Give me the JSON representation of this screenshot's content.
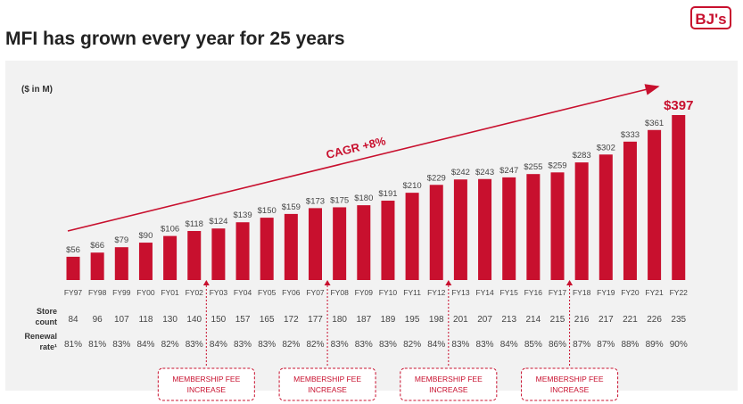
{
  "page": {
    "title": "MFI has grown every year for 25 years",
    "brand": "BJ's"
  },
  "colors": {
    "bar": "#c8102e",
    "accent": "#c8102e",
    "text": "#444444",
    "panel": "#f2f2f2"
  },
  "chart_data": {
    "type": "bar",
    "title": "MFI has grown every year for 25 years",
    "ylabel": "($ in M)",
    "xlabel": "",
    "ylim": [
      0,
      420
    ],
    "grid": false,
    "categories": [
      "FY97",
      "FY98",
      "FY99",
      "FY00",
      "FY01",
      "FY02",
      "FY03",
      "FY04",
      "FY05",
      "FY06",
      "FY07",
      "FY08",
      "FY09",
      "FY10",
      "FY11",
      "FY12",
      "FY13",
      "FY14",
      "FY15",
      "FY16",
      "FY17",
      "FY18",
      "FY19",
      "FY20",
      "FY21",
      "FY22"
    ],
    "values": [
      56,
      66,
      79,
      90,
      106,
      118,
      124,
      139,
      150,
      159,
      173,
      175,
      180,
      191,
      210,
      229,
      242,
      243,
      247,
      255,
      259,
      283,
      302,
      333,
      361,
      397
    ],
    "value_labels": [
      "$56",
      "$66",
      "$79",
      "$90",
      "$106",
      "$118",
      "$124",
      "$139",
      "$150",
      "$159",
      "$173",
      "$175",
      "$180",
      "$191",
      "$210",
      "$229",
      "$242",
      "$243",
      "$247",
      "$255",
      "$259",
      "$283",
      "$302",
      "$333",
      "$361",
      "$397"
    ],
    "trend_annotation": "CAGR +8%",
    "rows": [
      {
        "label": [
          "Store",
          "count"
        ],
        "values": [
          "84",
          "96",
          "107",
          "118",
          "130",
          "140",
          "150",
          "157",
          "165",
          "172",
          "177",
          "180",
          "187",
          "189",
          "195",
          "198",
          "201",
          "207",
          "213",
          "214",
          "215",
          "216",
          "217",
          "221",
          "226",
          "235"
        ]
      },
      {
        "label": [
          "Renewal",
          "rate¹"
        ],
        "values": [
          "81%",
          "81%",
          "83%",
          "84%",
          "82%",
          "83%",
          "84%",
          "83%",
          "83%",
          "82%",
          "82%",
          "83%",
          "83%",
          "83%",
          "82%",
          "84%",
          "83%",
          "83%",
          "84%",
          "85%",
          "86%",
          "87%",
          "87%",
          "88%",
          "89%",
          "90%"
        ]
      }
    ],
    "fee_increases": [
      {
        "label": [
          "MEMBERSHIP FEE",
          "INCREASE"
        ],
        "after_index": 5
      },
      {
        "label": [
          "MEMBERSHIP FEE",
          "INCREASE"
        ],
        "after_index": 10
      },
      {
        "label": [
          "MEMBERSHIP FEE",
          "INCREASE"
        ],
        "after_index": 15
      },
      {
        "label": [
          "MEMBERSHIP FEE",
          "INCREASE"
        ],
        "after_index": 20
      }
    ]
  }
}
